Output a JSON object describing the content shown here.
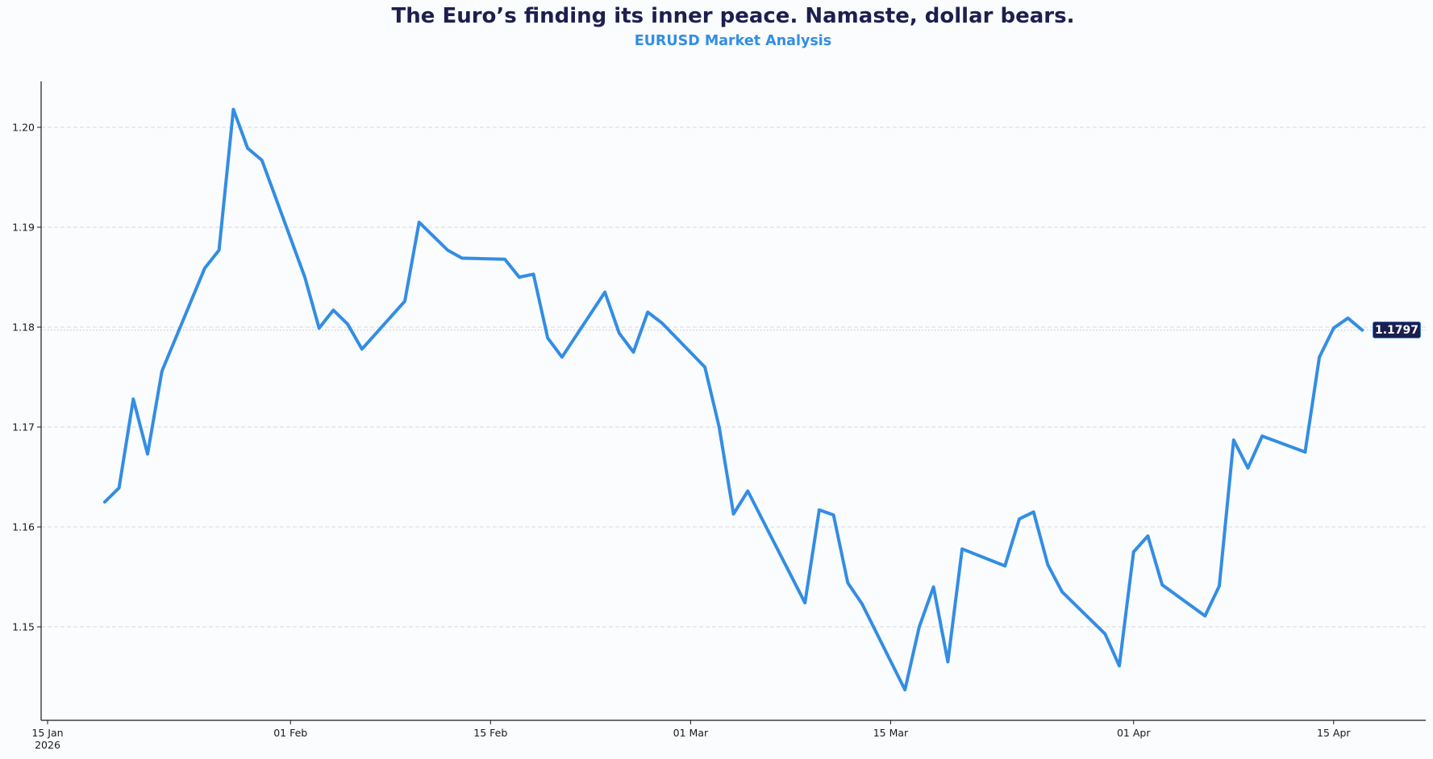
{
  "header": {
    "title": "The Euro’s finding its inner peace. Namaste, dollar bears.",
    "subtitle": "EURUSD Market Analysis"
  },
  "colors": {
    "title": "#1c1f4f",
    "accent": "#338de3",
    "badge_bg": "#1b1f4e",
    "grid": "#d6d9de",
    "axis": "#1a1a1a",
    "background": "#fafcfe"
  },
  "current_price": {
    "label": "1.1797",
    "value": 1.1797
  },
  "chart_data": {
    "type": "line",
    "title": "The Euro’s finding its inner peace. Namaste, dollar bears.",
    "subtitle": "EURUSD Market Analysis",
    "xlabel": "",
    "ylabel": "",
    "ylim": [
      1.1406,
      1.2046
    ],
    "grid": "horizontal dashed",
    "legend": "none",
    "x_ticks": [
      {
        "date": "2026-01-15",
        "label": "15 Jan",
        "sublabel": "2026"
      },
      {
        "date": "2026-02-01",
        "label": "01 Feb"
      },
      {
        "date": "2026-02-15",
        "label": "15 Feb"
      },
      {
        "date": "2026-03-01",
        "label": "01 Mar"
      },
      {
        "date": "2026-03-15",
        "label": "15 Mar"
      },
      {
        "date": "2026-04-01",
        "label": "01 Apr"
      },
      {
        "date": "2026-04-15",
        "label": "15 Apr"
      }
    ],
    "y_ticks": [
      "1.15",
      "1.16",
      "1.17",
      "1.18",
      "1.19",
      "1.20"
    ],
    "annotations": [
      {
        "type": "last-price-badge",
        "text": "1.1797",
        "line": "dotted horizontal at 1.1797"
      }
    ],
    "series": [
      {
        "name": "EURUSD",
        "x": [
          "2026-01-19",
          "2026-01-20",
          "2026-01-21",
          "2026-01-22",
          "2026-01-23",
          "2026-01-26",
          "2026-01-27",
          "2026-01-28",
          "2026-01-29",
          "2026-01-30",
          "2026-02-02",
          "2026-02-03",
          "2026-02-04",
          "2026-02-05",
          "2026-02-06",
          "2026-02-09",
          "2026-02-10",
          "2026-02-11",
          "2026-02-12",
          "2026-02-13",
          "2026-02-16",
          "2026-02-17",
          "2026-02-18",
          "2026-02-19",
          "2026-02-20",
          "2026-02-23",
          "2026-02-24",
          "2026-02-25",
          "2026-02-26",
          "2026-02-27",
          "2026-03-02",
          "2026-03-03",
          "2026-03-04",
          "2026-03-05",
          "2026-03-06",
          "2026-03-09",
          "2026-03-10",
          "2026-03-11",
          "2026-03-12",
          "2026-03-13",
          "2026-03-16",
          "2026-03-17",
          "2026-03-18",
          "2026-03-19",
          "2026-03-20",
          "2026-03-23",
          "2026-03-24",
          "2026-03-25",
          "2026-03-26",
          "2026-03-27",
          "2026-03-30",
          "2026-03-31",
          "2026-04-01",
          "2026-04-02",
          "2026-04-03",
          "2026-04-06",
          "2026-04-07",
          "2026-04-08",
          "2026-04-09",
          "2026-04-10",
          "2026-04-13",
          "2026-04-14",
          "2026-04-15",
          "2026-04-16",
          "2026-04-17"
        ],
        "values": [
          1.1625,
          1.1639,
          1.1728,
          1.1673,
          1.1756,
          1.1859,
          1.1877,
          1.2018,
          1.1979,
          1.1967,
          1.185,
          1.1799,
          1.1817,
          1.1803,
          1.1778,
          1.1826,
          1.1905,
          1.1891,
          1.1877,
          1.1869,
          1.1868,
          1.185,
          1.1853,
          1.1789,
          1.177,
          1.1835,
          1.1794,
          1.1775,
          1.1815,
          1.1804,
          1.176,
          1.17,
          1.1613,
          1.1636,
          1.1608,
          1.1524,
          1.1617,
          1.1612,
          1.1544,
          1.1523,
          1.1437,
          1.15,
          1.154,
          1.1465,
          1.1578,
          1.1561,
          1.1608,
          1.1615,
          1.1562,
          1.1535,
          1.1493,
          1.1461,
          1.1575,
          1.1591,
          1.1542,
          1.1511,
          1.1541,
          1.1687,
          1.1659,
          1.1691,
          1.1675,
          1.177,
          1.1799,
          1.1809,
          1.1797
        ]
      }
    ]
  }
}
